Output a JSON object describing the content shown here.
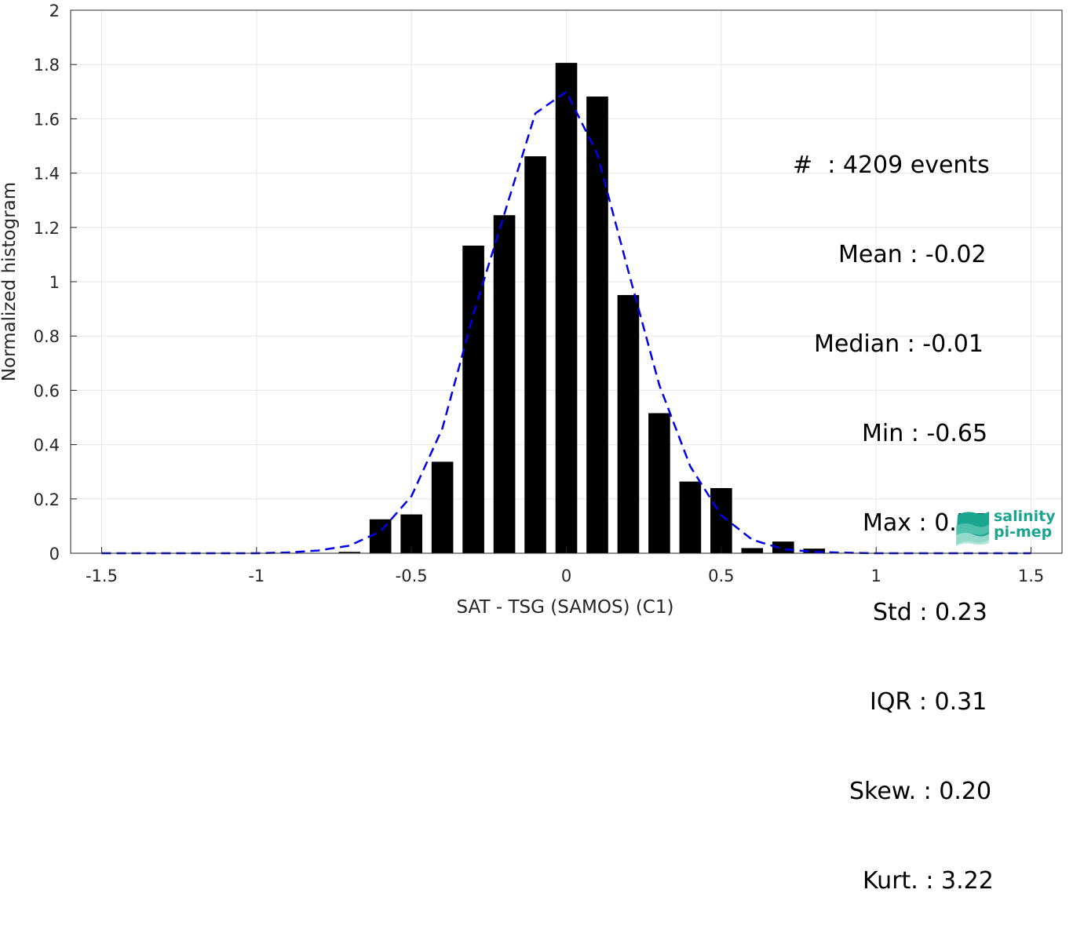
{
  "chart_data": {
    "type": "bar",
    "xlabel": "SAT - TSG (SAMOS) (C1)",
    "ylabel": "Normalized histogram",
    "xlim": [
      -1.6,
      1.6
    ],
    "ylim": [
      0,
      2
    ],
    "xticks": [
      -1.5,
      -1,
      -0.5,
      0,
      0.5,
      1,
      1.5
    ],
    "xtick_labels": [
      "-1.5",
      "-1",
      "-0.5",
      "0",
      "0.5",
      "1",
      "1.5"
    ],
    "yticks": [
      0,
      0.2,
      0.4,
      0.6,
      0.8,
      1,
      1.2,
      1.4,
      1.6,
      1.8,
      2
    ],
    "ytick_labels": [
      "0",
      "0.2",
      "0.4",
      "0.6",
      "0.8",
      "1",
      "1.2",
      "1.4",
      "1.6",
      "1.8",
      "2"
    ],
    "grid": true,
    "bar_color": "#000000",
    "bar_width": 0.07,
    "bars": {
      "x": [
        -0.7,
        -0.6,
        -0.5,
        -0.4,
        -0.3,
        -0.2,
        -0.1,
        0.0,
        0.1,
        0.2,
        0.3,
        0.4,
        0.5,
        0.6,
        0.7,
        0.8
      ],
      "values": [
        0.005,
        0.125,
        0.143,
        0.337,
        1.133,
        1.245,
        1.462,
        1.806,
        1.682,
        0.951,
        0.516,
        0.264,
        0.24,
        0.019,
        0.043,
        0.017
      ]
    },
    "fit_line": {
      "style": "dashed",
      "color": "#0000ee",
      "x": [
        -1.5,
        -1.4,
        -1.3,
        -1.2,
        -1.1,
        -1.0,
        -0.9,
        -0.8,
        -0.7,
        -0.6,
        -0.5,
        -0.4,
        -0.3,
        -0.2,
        -0.1,
        0.0,
        0.1,
        0.2,
        0.3,
        0.4,
        0.5,
        0.6,
        0.7,
        0.8,
        0.9,
        1.0,
        1.1,
        1.2,
        1.3,
        1.4,
        1.5
      ],
      "y": [
        0,
        0,
        0,
        0,
        0,
        0,
        0.003,
        0.01,
        0.028,
        0.08,
        0.21,
        0.46,
        0.88,
        1.25,
        1.62,
        1.7,
        1.47,
        1.04,
        0.62,
        0.32,
        0.14,
        0.05,
        0.015,
        0.005,
        0.002,
        0,
        0,
        0,
        0,
        0,
        0
      ]
    }
  },
  "stats": {
    "lines": [
      "#  : 4209 events",
      "Mean : -0.02",
      "Median : -0.01",
      "Min : -0.65",
      "Max : 0.77",
      "Std : 0.23",
      "IQR : 0.31",
      "Skew. : 0.20",
      "Kurt. : 3.22"
    ]
  },
  "logo": {
    "line1": "salinity",
    "line2": "pi-mep",
    "color": "#1aa58f"
  }
}
